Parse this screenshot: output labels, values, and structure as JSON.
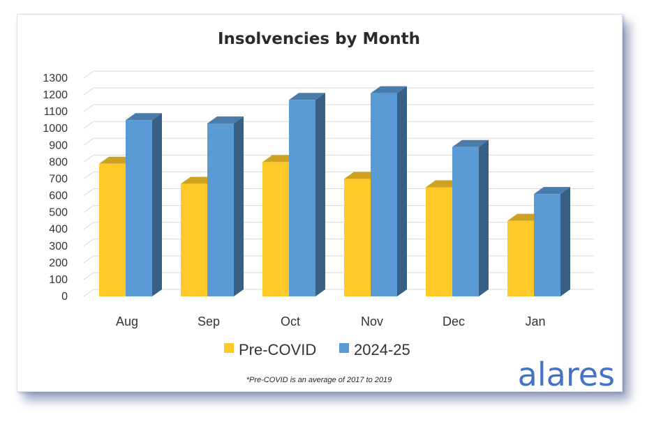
{
  "chart_data": {
    "type": "bar",
    "title": "Insolvencies by Month",
    "categories": [
      "Aug",
      "Sep",
      "Oct",
      "Nov",
      "Dec",
      "Jan"
    ],
    "series": [
      {
        "name": "Pre-COVID",
        "values": [
          790,
          670,
          800,
          700,
          650,
          450
        ],
        "color": "#ffca28"
      },
      {
        "name": "2024-25",
        "values": [
          1050,
          1030,
          1170,
          1210,
          890,
          610
        ],
        "color": "#5b9bd5"
      }
    ],
    "yticks": [
      0,
      100,
      200,
      300,
      400,
      500,
      600,
      700,
      800,
      900,
      1000,
      1100,
      1200,
      1300
    ],
    "ylim": [
      0,
      1300
    ],
    "xlabel": "",
    "ylabel": "",
    "grid": true,
    "legend": "bottom",
    "footnote": "*Pre-COVID is an average of 2017 to 2019"
  },
  "branding": {
    "logo_text": "alares",
    "logo_color": "#4472c4"
  }
}
